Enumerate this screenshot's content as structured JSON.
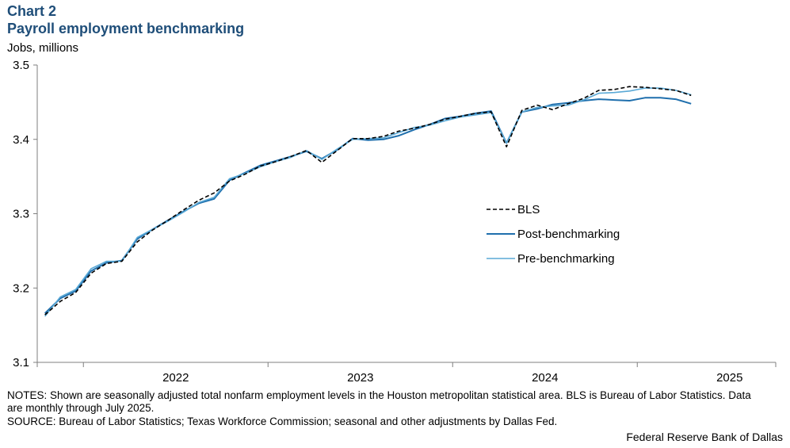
{
  "header": {
    "chart_number": "Chart 2",
    "title": "Payroll employment benchmarking",
    "units": "Jobs, millions"
  },
  "footer": {
    "notes": "NOTES: Shown are seasonally adjusted total nonfarm employment levels in the Houston metropolitan statistical area. BLS is Bureau of Labor Statistics. Data are monthly through July 2025.",
    "source": "SOURCE: Bureau of Labor Statistics; Texas Workforce Commission; seasonal and other adjustments by Dallas Fed.",
    "credit": "Federal Reserve Bank of Dallas"
  },
  "colors": {
    "title": "#1f4e79",
    "bls": "#000000",
    "post": "#1f6fad",
    "pre": "#5aa9d6",
    "axis": "#7f7f7f"
  },
  "chart_data": {
    "type": "line",
    "title": "Payroll employment benchmarking",
    "ylabel": "Jobs, millions",
    "ylim": [
      3.1,
      3.5
    ],
    "yticks": [
      "3.1",
      "3.2",
      "3.3",
      "3.4",
      "3.5"
    ],
    "xticks": [
      "2022",
      "2023",
      "2024",
      "2025"
    ],
    "x_start": "2021-10",
    "x_end": "2025-07",
    "legend_position": "center-right",
    "grid": false,
    "series": [
      {
        "name": "BLS",
        "style": "dashed",
        "values": [
          3.164,
          3.182,
          3.194,
          3.22,
          3.233,
          3.236,
          3.262,
          3.278,
          3.291,
          3.305,
          3.318,
          3.328,
          3.344,
          3.353,
          3.364,
          3.37,
          3.377,
          3.385,
          3.369,
          3.385,
          3.401,
          3.401,
          3.404,
          3.411,
          3.415,
          3.42,
          3.427,
          3.431,
          3.435,
          3.437,
          3.39,
          3.439,
          3.446,
          3.44,
          3.448,
          3.455,
          3.466,
          3.467,
          3.471,
          3.47,
          3.468,
          3.466,
          3.459
        ]
      },
      {
        "name": "Post-benchmarking",
        "style": "solid",
        "values": [
          3.166,
          3.186,
          3.196,
          3.223,
          3.234,
          3.237,
          3.266,
          3.279,
          3.291,
          3.303,
          3.314,
          3.32,
          3.345,
          3.355,
          3.365,
          3.371,
          3.377,
          3.384,
          3.374,
          3.386,
          3.401,
          3.399,
          3.4,
          3.405,
          3.413,
          3.42,
          3.428,
          3.431,
          3.435,
          3.438,
          3.395,
          3.437,
          3.441,
          3.447,
          3.449,
          3.452,
          3.454,
          3.453,
          3.452,
          3.456,
          3.456,
          3.454,
          3.448
        ]
      },
      {
        "name": "Pre-benchmarking",
        "style": "solid",
        "values": [
          3.162,
          3.188,
          3.198,
          3.226,
          3.236,
          3.236,
          3.268,
          3.279,
          3.29,
          3.302,
          3.315,
          3.322,
          3.347,
          3.354,
          3.363,
          3.37,
          3.376,
          3.385,
          3.373,
          3.387,
          3.4,
          3.401,
          3.402,
          3.409,
          3.416,
          3.419,
          3.425,
          3.43,
          3.433,
          3.436,
          3.395,
          3.437,
          3.443,
          3.445,
          3.446,
          3.453,
          3.462,
          3.463,
          3.465,
          3.469,
          3.469,
          3.466,
          3.46
        ]
      }
    ]
  }
}
